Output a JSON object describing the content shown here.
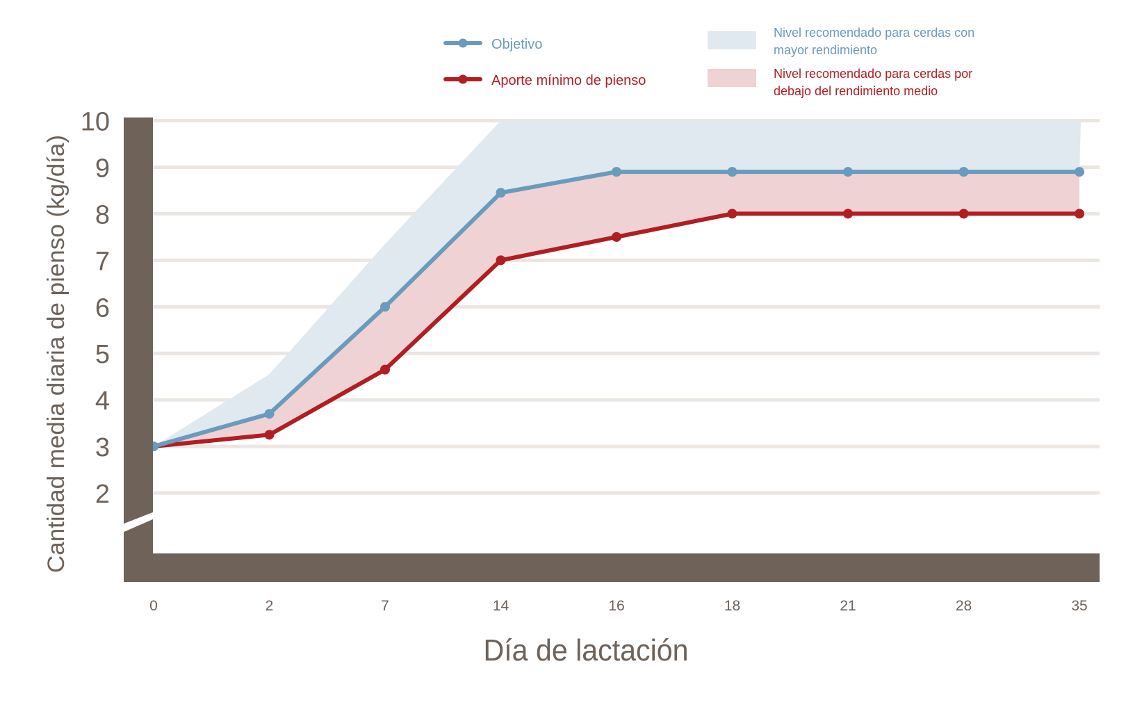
{
  "chart_data": {
    "type": "line",
    "xlabel": "Día de lactación",
    "ylabel": "Cantidad media diaria de pienso (kg/día)",
    "categories": [
      "0",
      "2",
      "7",
      "14",
      "16",
      "18",
      "21",
      "28",
      "35"
    ],
    "y_ticks": [
      "2",
      "3",
      "4",
      "5",
      "6",
      "7",
      "8",
      "9",
      "10"
    ],
    "ylim": [
      2,
      10
    ],
    "y_axis_break": true,
    "grid": "horizontal",
    "legend_position": "top-right",
    "series": [
      {
        "name": "Objetivo",
        "values": [
          3,
          3.7,
          6,
          8.45,
          8.9,
          8.9,
          8.9,
          8.9,
          8.9
        ],
        "color": "#6a9bbd"
      },
      {
        "name": "Aporte mínimo de pienso",
        "values": [
          3,
          3.25,
          4.65,
          7,
          7.5,
          8,
          8,
          8,
          8
        ],
        "color": "#b01e24"
      }
    ],
    "bands": [
      {
        "name": "Nivel recomendado para cerdas con mayor rendimiento",
        "lower": "Objetivo",
        "upper": [
          3,
          4.55,
          7.35,
          10,
          10,
          10,
          10,
          10,
          10
        ],
        "color": "#dfe9ef"
      },
      {
        "name": "Nivel recomendado para cerdas por debajo del rendimiento medio",
        "lower": "Aporte mínimo de pienso",
        "upper": "Objetivo",
        "color": "#eed2d4"
      }
    ]
  },
  "legend": {
    "line1": "Objetivo",
    "line2": "Aporte mínimo de pienso",
    "band1_l1": "Nivel recomendado para cerdas con",
    "band1_l2": "mayor rendimiento",
    "band2_l1": "Nivel recomendado para cerdas por",
    "band2_l2": "debajo del rendimiento medio"
  },
  "colors": {
    "axis": "#6e6259",
    "grid": "#ebe6e1",
    "text": "#6e6259"
  }
}
